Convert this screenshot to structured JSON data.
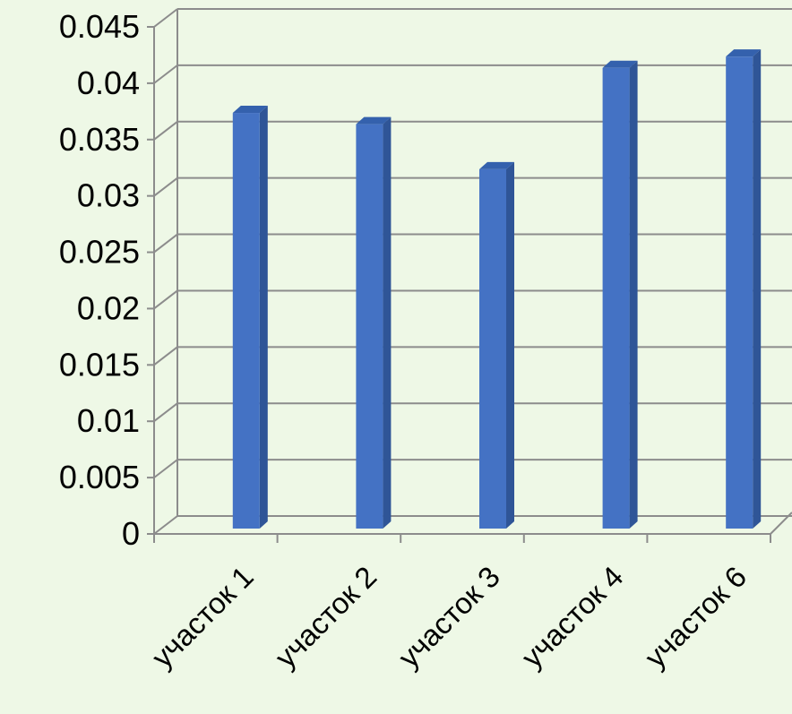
{
  "chart_data": {
    "type": "bar",
    "style": "3d-column",
    "categories": [
      "участок 1",
      "участок 2",
      "участок 3",
      "участок 4",
      "участок 6"
    ],
    "series": [
      {
        "values": [
          0.038,
          0.037,
          0.033,
          0.042,
          0.043
        ],
        "color": "#4472c4"
      }
    ],
    "y_ticks": [
      "0",
      "0.005",
      "0.01",
      "0.015",
      "0.02",
      "0.025",
      "0.03",
      "0.035",
      "0.04",
      "0.045"
    ],
    "ylim": [
      0,
      0.045
    ],
    "grid": true,
    "legend": "none",
    "colors": {
      "background": "#eef8e6",
      "bar_front": "#4472c4",
      "bar_side": "#2f5597",
      "bar_top": "#3461ad",
      "grid": "#8c8c8c"
    }
  }
}
